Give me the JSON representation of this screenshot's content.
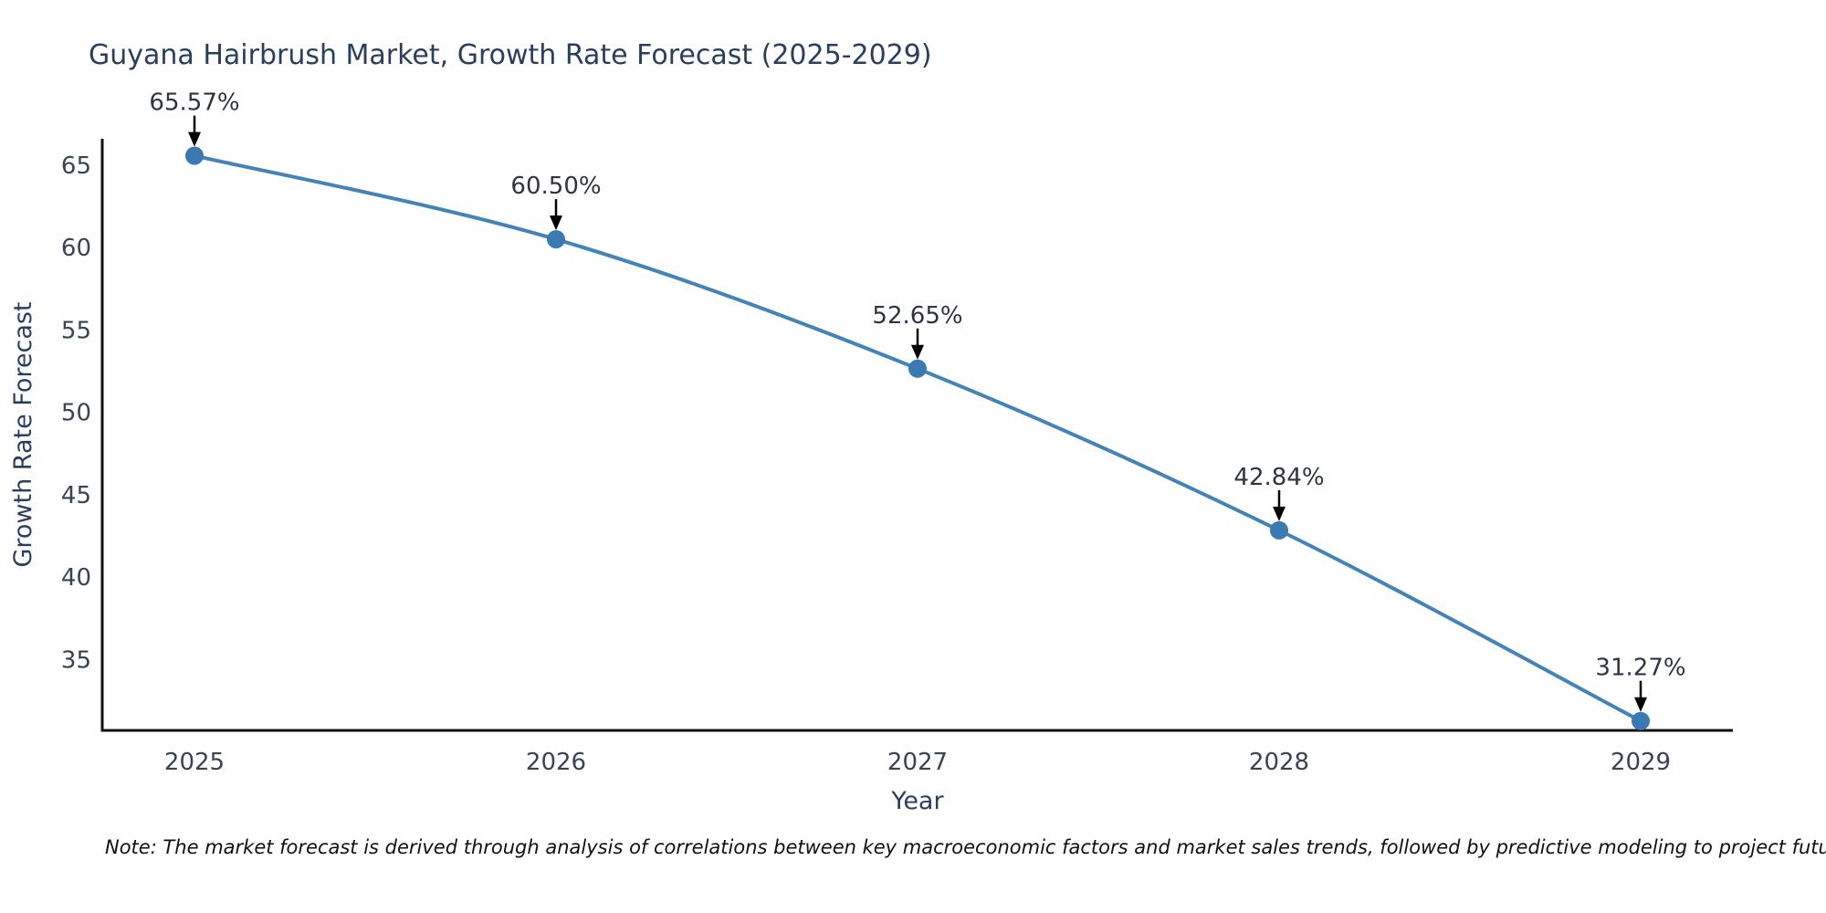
{
  "chart_data": {
    "type": "line",
    "title": "Guyana Hairbrush Market, Growth Rate Forecast (2025-2029)",
    "xlabel": "Year",
    "ylabel": "Growth Rate Forecast",
    "x": [
      2025,
      2026,
      2027,
      2028,
      2029
    ],
    "values": [
      65.57,
      60.5,
      52.65,
      42.84,
      31.27
    ],
    "point_labels": [
      "65.57%",
      "60.50%",
      "52.65%",
      "42.84%",
      "31.27%"
    ],
    "xticks": [
      "2025",
      "2026",
      "2027",
      "2028",
      "2029"
    ],
    "yticks": [
      35,
      40,
      45,
      50,
      55,
      60,
      65
    ],
    "ylim": [
      30.7,
      66.6
    ],
    "grid": false,
    "legend": null,
    "line_color": "#4483b7",
    "marker_color": "#3a79b2",
    "axis_color": "#111111",
    "arrow_color": "#000000"
  },
  "note": "Note: The market forecast is derived through analysis of correlations between key macroeconomic factors and market sales trends, followed by predictive modeling to project future sales."
}
